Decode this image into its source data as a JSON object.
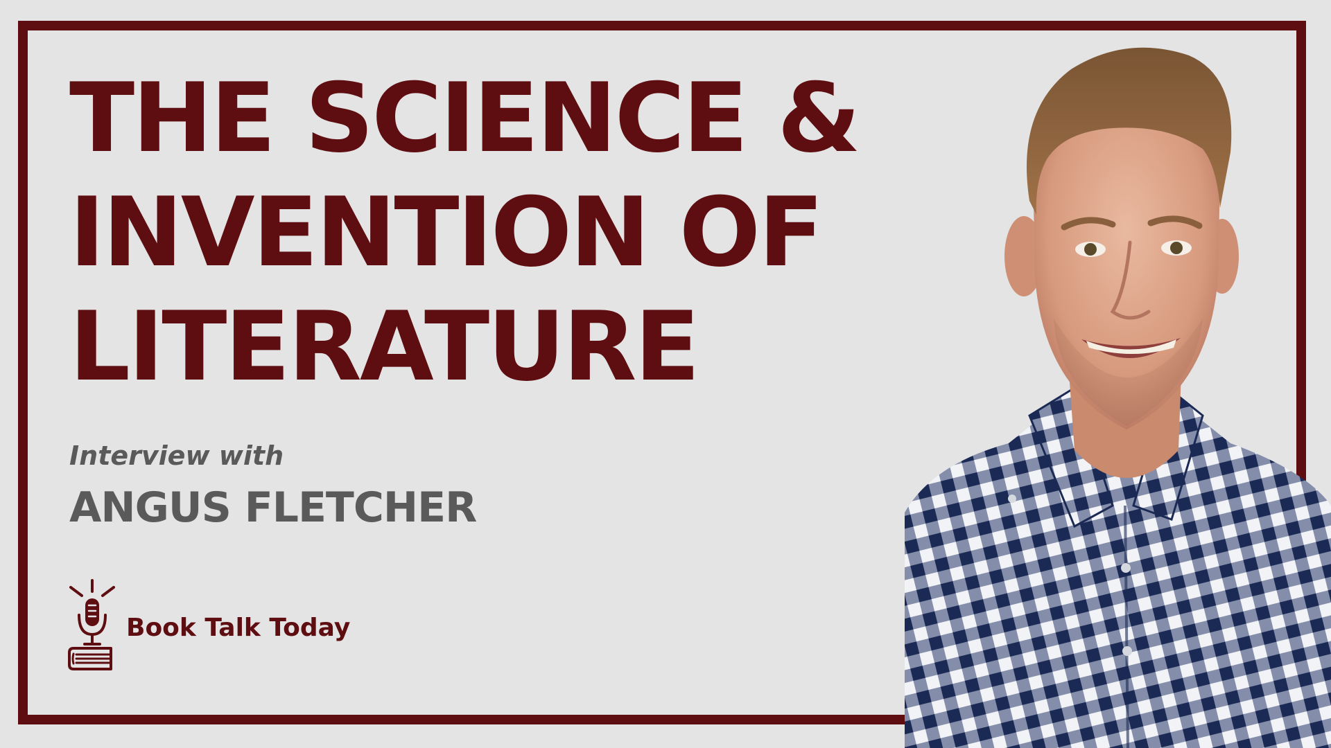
{
  "title_lines": [
    "THE SCIENCE &",
    "INVENTION OF",
    "LITERATURE"
  ],
  "interview_label": "Interview with",
  "guest_name": "ANGUS FLETCHER",
  "brand": {
    "name": "Book Talk Today",
    "logo_icon": "microphone-on-book-icon"
  },
  "portrait_icon": "guest-portrait",
  "colors": {
    "accent": "#5e0d11",
    "background": "#e4e4e4",
    "secondary_text": "#5a5a5a",
    "shirt_check_dark": "#1b2a55",
    "shirt_check_light": "#f2f3f7"
  }
}
